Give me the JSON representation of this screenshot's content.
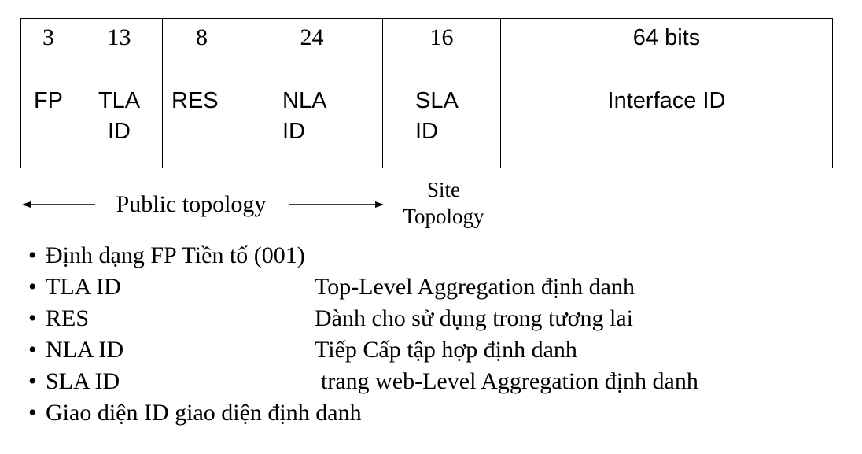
{
  "fields": [
    {
      "id": "fp",
      "bits": "3",
      "line1": "FP",
      "line2": ""
    },
    {
      "id": "tla",
      "bits": "13",
      "line1": "TLA",
      "line2": "ID"
    },
    {
      "id": "res",
      "bits": "8",
      "line1": "RES",
      "line2": ""
    },
    {
      "id": "nla",
      "bits": "24",
      "line1": "NLA",
      "line2": "ID"
    },
    {
      "id": "sla",
      "bits": "16",
      "line1": "SLA",
      "line2": "ID"
    },
    {
      "id": "interface",
      "bits": "64 bits",
      "line1": "Interface ID",
      "line2": ""
    }
  ],
  "topology": {
    "public_label": "Public topology",
    "site_line1": "Site",
    "site_line2": "Topology"
  },
  "legend": [
    {
      "bullet": "•",
      "term": "Định dạng FP Tiền tố (001)",
      "desc": ""
    },
    {
      "bullet": "•",
      "term": "TLA ID",
      "desc": "Top-Level Aggregation định danh"
    },
    {
      "bullet": "•",
      "term": "RES",
      "desc": "Dành cho sử dụng trong tương lai"
    },
    {
      "bullet": "•",
      "term": "NLA ID",
      "desc": "Tiếp Cấp tập hợp định danh"
    },
    {
      "bullet": "•",
      "term": "SLA ID",
      "desc": "trang web-Level Aggregation định danh"
    },
    {
      "bullet": "•",
      "term": "Giao diện ID giao diện định danh",
      "desc": ""
    }
  ]
}
